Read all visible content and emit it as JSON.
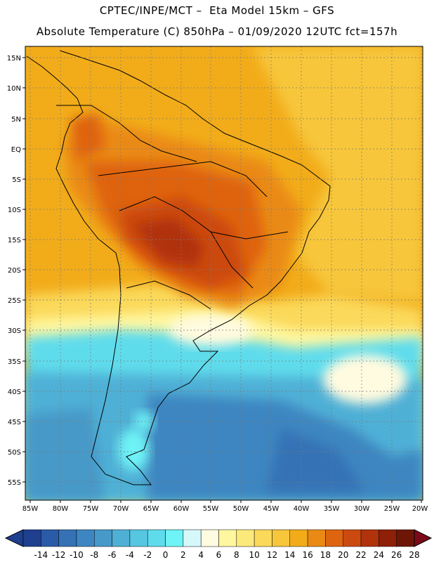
{
  "header": {
    "line1": "CPTEC/INPE/MCT –  Eta Model 15km – GFS",
    "line2": "Absolute Temperature (C) 850hPa – 01/09/2020 12UTC fct=157h"
  },
  "map": {
    "lat_labels": [
      "15N",
      "10N",
      "5N",
      "EQ",
      "5S",
      "10S",
      "15S",
      "20S",
      "25S",
      "30S",
      "35S",
      "40S",
      "45S",
      "50S",
      "55S"
    ],
    "lon_labels": [
      "85W",
      "80W",
      "75W",
      "70W",
      "65W",
      "60W",
      "55W",
      "50W",
      "45W",
      "40W",
      "35W",
      "30W",
      "25W",
      "20W"
    ]
  },
  "colorbar": {
    "labels": [
      "-14",
      "-12",
      "-10",
      "-8",
      "-6",
      "-4",
      "-2",
      "0",
      "2",
      "4",
      "6",
      "8",
      "10",
      "12",
      "14",
      "16",
      "18",
      "20",
      "22",
      "24",
      "26",
      "28"
    ],
    "colors": [
      "#1f3f8f",
      "#2a5ba8",
      "#3472b5",
      "#3d86c1",
      "#4699c8",
      "#4fb0d6",
      "#56c6e1",
      "#5fdcec",
      "#6ef3f6",
      "#d6f8fb",
      "#fffbe0",
      "#fff7a0",
      "#fde97a",
      "#fbd95a",
      "#f7c63b",
      "#f2ac1a",
      "#ea8a14",
      "#df6410",
      "#cc4a10",
      "#b0330c",
      "#8e2008",
      "#6e1606"
    ]
  }
}
